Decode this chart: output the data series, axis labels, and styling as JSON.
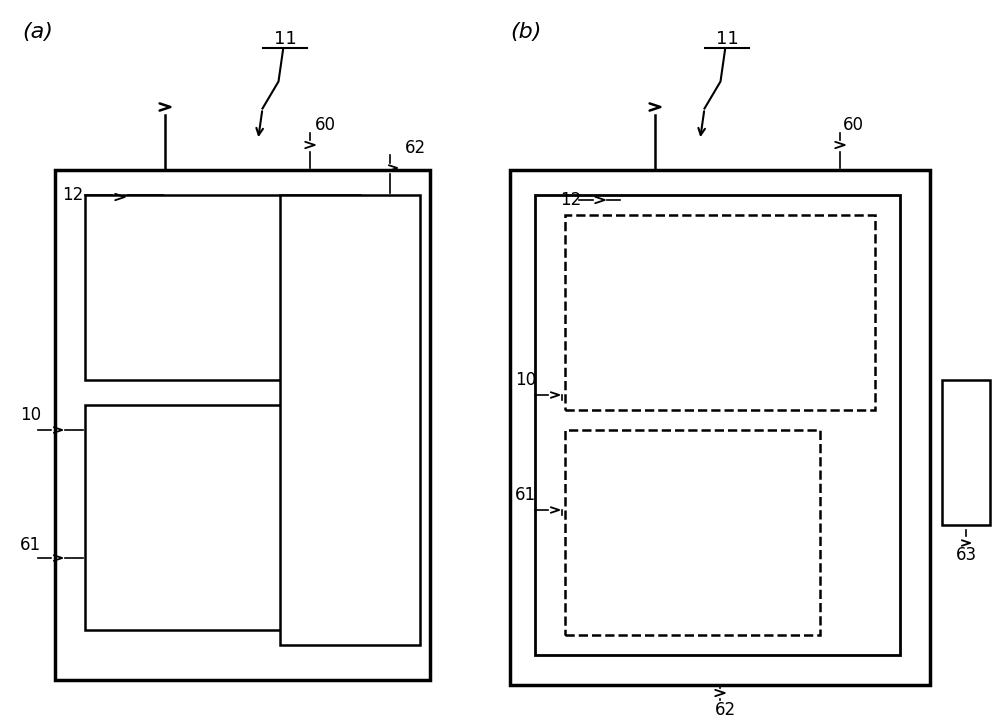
{
  "bg_color": "#ffffff",
  "fig_width": 10.0,
  "fig_height": 7.26
}
